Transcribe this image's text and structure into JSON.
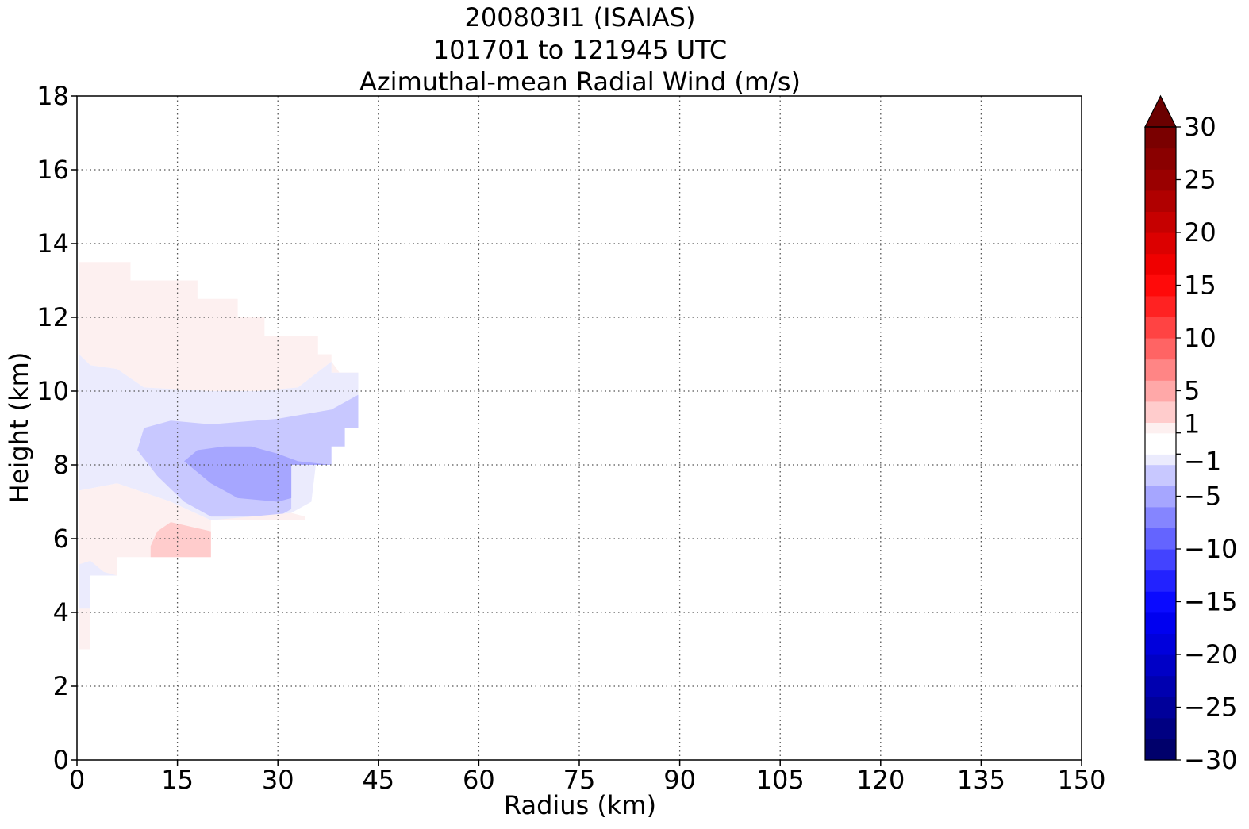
{
  "chart_data": {
    "type": "contourf",
    "title": [
      "200803I1 (ISAIAS)",
      "101701 to 121945 UTC",
      "Azimuthal-mean Radial Wind (m/s)"
    ],
    "xlabel": "Radius (km)",
    "ylabel": "Height (km)",
    "xlim": [
      0,
      150
    ],
    "ylim": [
      0,
      18
    ],
    "x_ticks": [
      "0",
      "15",
      "30",
      "45",
      "60",
      "75",
      "90",
      "105",
      "120",
      "135",
      "150"
    ],
    "y_ticks": [
      "0",
      "2",
      "4",
      "6",
      "8",
      "10",
      "12",
      "14",
      "16",
      "18"
    ],
    "grid": true,
    "colorbar": {
      "range": [
        -30,
        30
      ],
      "ticks": [
        "30",
        "25",
        "20",
        "15",
        "10",
        "5",
        "1",
        "−1",
        "−5",
        "−10",
        "−15",
        "−20",
        "−25",
        "−30"
      ],
      "extend": "max",
      "levels": [
        {
          "lo": -30,
          "hi": -28,
          "color": "#00006b"
        },
        {
          "lo": -28,
          "hi": -26,
          "color": "#000082"
        },
        {
          "lo": -26,
          "hi": -24,
          "color": "#00009a"
        },
        {
          "lo": -24,
          "hi": -22,
          "color": "#0000b0"
        },
        {
          "lo": -22,
          "hi": -20,
          "color": "#0000c6"
        },
        {
          "lo": -20,
          "hi": -18,
          "color": "#0000dc"
        },
        {
          "lo": -18,
          "hi": -16,
          "color": "#0000f0"
        },
        {
          "lo": -16,
          "hi": -14,
          "color": "#0a0aff"
        },
        {
          "lo": -14,
          "hi": -12,
          "color": "#2222ff"
        },
        {
          "lo": -12,
          "hi": -10,
          "color": "#4343ff"
        },
        {
          "lo": -10,
          "hi": -8,
          "color": "#6464ff"
        },
        {
          "lo": -8,
          "hi": -6,
          "color": "#8585ff"
        },
        {
          "lo": -6,
          "hi": -4,
          "color": "#a6a6ff"
        },
        {
          "lo": -4,
          "hi": -2,
          "color": "#c8c8ff"
        },
        {
          "lo": -2,
          "hi": -1,
          "color": "#ebebfd"
        },
        {
          "lo": -1,
          "hi": 1,
          "color": "#ffffff"
        },
        {
          "lo": 1,
          "hi": 2,
          "color": "#fdf0f0"
        },
        {
          "lo": 2,
          "hi": 4,
          "color": "#ffcccc"
        },
        {
          "lo": 4,
          "hi": 6,
          "color": "#ffa8a8"
        },
        {
          "lo": 6,
          "hi": 8,
          "color": "#ff8585"
        },
        {
          "lo": 8,
          "hi": 10,
          "color": "#ff6464"
        },
        {
          "lo": 10,
          "hi": 12,
          "color": "#ff4343"
        },
        {
          "lo": 12,
          "hi": 14,
          "color": "#ff2222"
        },
        {
          "lo": 14,
          "hi": 16,
          "color": "#ff0a0a"
        },
        {
          "lo": 16,
          "hi": 18,
          "color": "#f00000"
        },
        {
          "lo": 18,
          "hi": 20,
          "color": "#dc0000"
        },
        {
          "lo": 20,
          "hi": 22,
          "color": "#c60000"
        },
        {
          "lo": 22,
          "hi": 24,
          "color": "#b00000"
        },
        {
          "lo": 24,
          "hi": 26,
          "color": "#9a0000"
        },
        {
          "lo": 26,
          "hi": 28,
          "color": "#8a0000"
        },
        {
          "lo": 28,
          "hi": 30,
          "color": "#7a0000"
        }
      ],
      "extend_color": "#6b0000"
    },
    "regions": [
      {
        "name": "outflow-upper",
        "level_range": [
          1,
          2
        ],
        "color": "#fdf0f0",
        "points": [
          [
            0.3,
            13.5
          ],
          [
            8,
            13.5
          ],
          [
            8,
            13
          ],
          [
            18,
            13
          ],
          [
            18,
            12.5
          ],
          [
            24,
            12.5
          ],
          [
            24,
            12
          ],
          [
            28,
            12
          ],
          [
            28,
            11.5
          ],
          [
            36,
            11.5
          ],
          [
            36,
            11
          ],
          [
            38,
            11
          ],
          [
            38,
            10.5
          ],
          [
            42,
            10.5
          ],
          [
            42,
            9.8
          ],
          [
            38,
            10.8
          ],
          [
            33,
            10.1
          ],
          [
            27,
            10.0
          ],
          [
            20,
            10.0
          ],
          [
            10,
            10.1
          ],
          [
            6,
            10.6
          ],
          [
            2,
            10.7
          ],
          [
            0.3,
            11
          ]
        ]
      },
      {
        "name": "inflow-weak",
        "level_range": [
          -2,
          -1
        ],
        "color": "#ebebfd",
        "points": [
          [
            0.3,
            11
          ],
          [
            2,
            10.7
          ],
          [
            6,
            10.6
          ],
          [
            10,
            10.1
          ],
          [
            20,
            10.0
          ],
          [
            27,
            10.0
          ],
          [
            33,
            10.1
          ],
          [
            38,
            10.8
          ],
          [
            38,
            10.5
          ],
          [
            42,
            10.5
          ],
          [
            42,
            9.8
          ],
          [
            40,
            9.0
          ],
          [
            36,
            8.5
          ],
          [
            35,
            7.0
          ],
          [
            32,
            6.7
          ],
          [
            30,
            6.6
          ],
          [
            20,
            6.5
          ],
          [
            14,
            7.0
          ],
          [
            6,
            7.5
          ],
          [
            0.3,
            7.3
          ]
        ]
      },
      {
        "name": "inflow-moderate",
        "level_range": [
          -4,
          -2
        ],
        "color": "#c8c8ff",
        "points": [
          [
            9,
            8.4
          ],
          [
            10,
            9.0
          ],
          [
            14,
            9.2
          ],
          [
            20,
            9.1
          ],
          [
            30,
            9.25
          ],
          [
            38,
            9.5
          ],
          [
            42,
            9.9
          ],
          [
            42,
            9.0
          ],
          [
            40,
            9.0
          ],
          [
            40,
            8.5
          ],
          [
            38,
            8.5
          ],
          [
            38,
            8.0
          ],
          [
            32,
            8.0
          ],
          [
            32,
            6.8
          ],
          [
            30,
            6.6
          ],
          [
            20,
            6.6
          ],
          [
            16,
            7.0
          ],
          [
            12,
            7.7
          ]
        ]
      },
      {
        "name": "inflow-core",
        "level_range": [
          -6,
          -4
        ],
        "color": "#a6a6ff",
        "points": [
          [
            16,
            8.1
          ],
          [
            18,
            8.4
          ],
          [
            22,
            8.5
          ],
          [
            26,
            8.5
          ],
          [
            30,
            8.3
          ],
          [
            33,
            8.1
          ],
          [
            38,
            8.0
          ],
          [
            32,
            8.0
          ],
          [
            32,
            7.1
          ],
          [
            30,
            7.0
          ],
          [
            24,
            7.1
          ],
          [
            20,
            7.5
          ]
        ]
      },
      {
        "name": "outflow-lower",
        "level_range": [
          1,
          2
        ],
        "color": "#fdf0f0",
        "points": [
          [
            0.3,
            7.3
          ],
          [
            6,
            7.5
          ],
          [
            14,
            7.0
          ],
          [
            20,
            6.5
          ],
          [
            32,
            6.7
          ],
          [
            34,
            6.6
          ],
          [
            34,
            6.5
          ],
          [
            20,
            6.5
          ],
          [
            20,
            5.5
          ],
          [
            6,
            5.5
          ],
          [
            6,
            5.0
          ],
          [
            2,
            5.0
          ],
          [
            0.3,
            5.3
          ]
        ]
      },
      {
        "name": "outflow-lower-strong",
        "level_range": [
          2,
          4
        ],
        "color": "#ffcccc",
        "points": [
          [
            11,
            5.5
          ],
          [
            11,
            5.8
          ],
          [
            12,
            6.2
          ],
          [
            14,
            6.45
          ],
          [
            20,
            6.2
          ],
          [
            20,
            5.5
          ]
        ]
      },
      {
        "name": "inflow-near-surface",
        "level_range": [
          -2,
          -1
        ],
        "color": "#ebebfd",
        "points": [
          [
            0.3,
            5.3
          ],
          [
            2,
            5.4
          ],
          [
            4,
            5.1
          ],
          [
            6,
            5.0
          ],
          [
            2,
            5.0
          ],
          [
            2,
            4.1
          ],
          [
            0.3,
            4.1
          ]
        ]
      },
      {
        "name": "outflow-surface",
        "level_range": [
          1,
          2
        ],
        "color": "#fdf0f0",
        "points": [
          [
            0.3,
            4.1
          ],
          [
            2,
            4.1
          ],
          [
            2,
            3.0
          ],
          [
            0.3,
            3.0
          ]
        ]
      }
    ]
  }
}
